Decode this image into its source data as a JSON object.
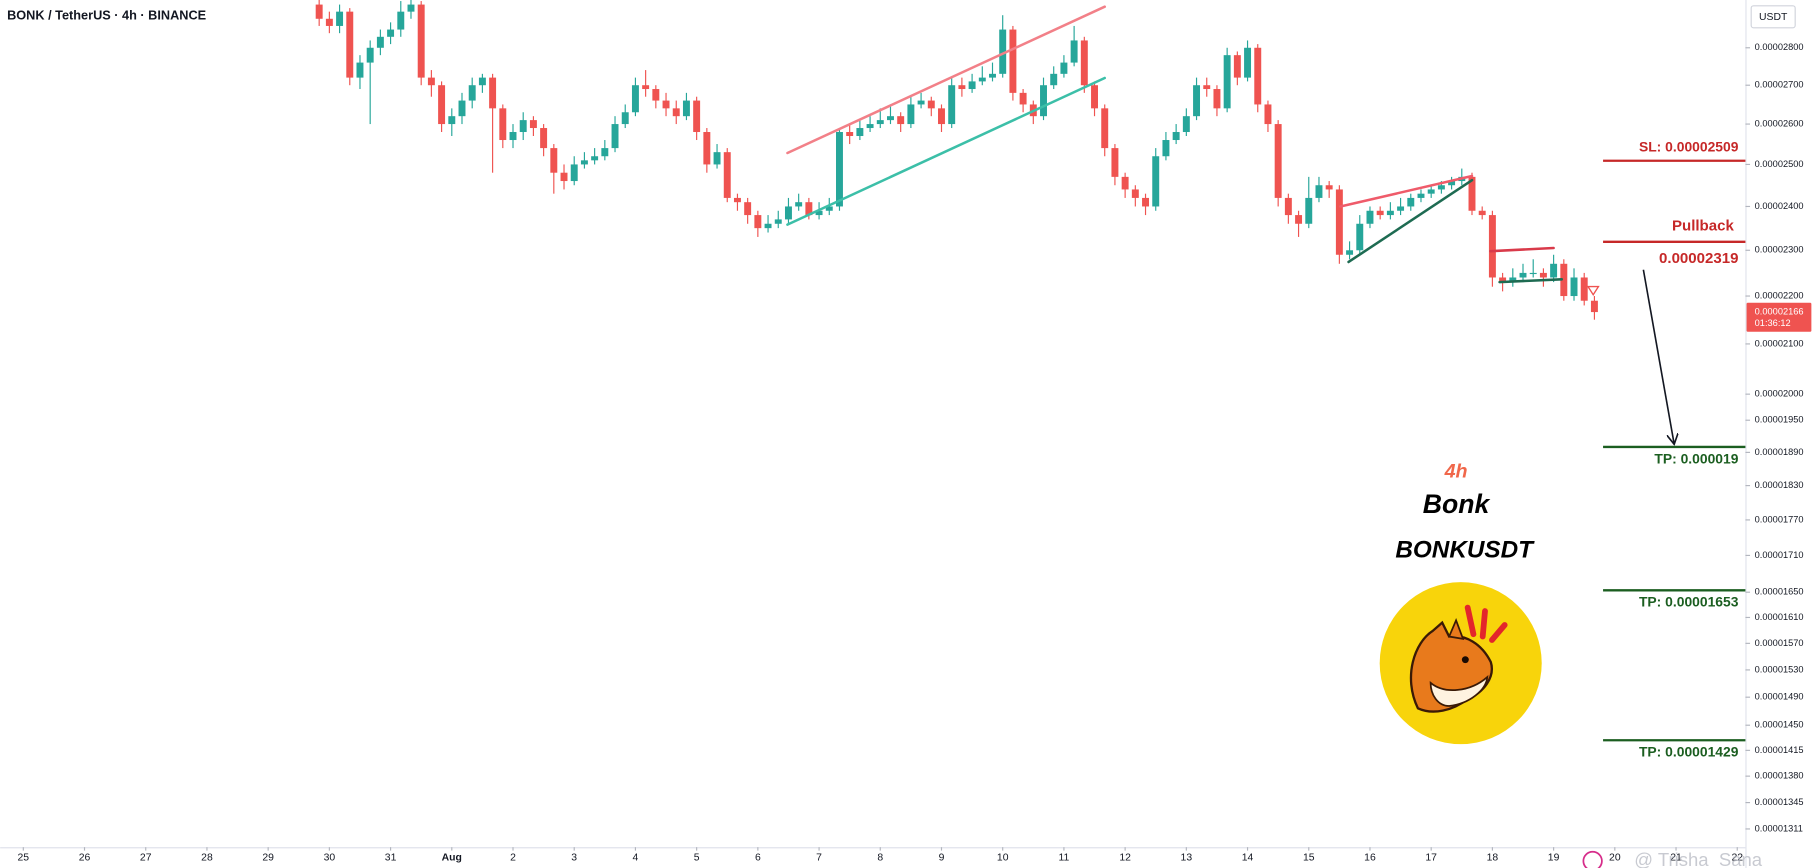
{
  "chart_data": {
    "type": "candlestick",
    "title": "BONK / TetherUS · 4h · BINANCE",
    "currency": "USDT",
    "log_scale": true,
    "grid": false,
    "up_color": "#26a69a",
    "down_color": "#ef5350",
    "x": [
      29,
      30,
      31,
      32,
      33,
      34,
      35,
      36,
      37,
      38,
      39,
      40,
      41,
      42,
      43,
      44,
      45,
      46,
      47,
      48,
      49,
      50,
      51,
      52,
      53,
      54,
      55,
      56,
      57,
      58,
      59,
      60,
      61,
      62,
      63,
      64,
      65,
      66,
      67,
      68,
      69,
      70,
      71,
      72,
      73,
      74,
      75,
      76,
      77,
      78,
      79,
      80,
      81,
      82,
      83,
      84,
      85,
      86,
      87,
      88,
      89,
      90,
      91,
      92,
      93,
      94,
      95,
      96,
      97,
      98,
      99,
      100,
      101,
      102,
      103,
      104,
      105,
      106,
      107,
      108,
      109,
      110,
      111,
      112,
      113,
      114,
      115,
      116,
      117,
      118,
      119,
      120,
      121,
      122,
      123,
      124,
      125,
      126,
      127,
      128,
      129,
      130,
      131,
      132,
      133,
      134,
      135,
      136,
      137,
      138,
      139,
      140,
      141,
      142,
      143,
      144,
      145,
      146,
      147,
      148,
      149,
      150,
      151,
      152,
      153,
      154
    ],
    "open": [
      2.92e-05,
      2.88e-05,
      2.86e-05,
      2.9e-05,
      2.72e-05,
      2.76e-05,
      2.8e-05,
      2.83e-05,
      2.85e-05,
      2.9e-05,
      2.92e-05,
      2.72e-05,
      2.7e-05,
      2.6e-05,
      2.62e-05,
      2.66e-05,
      2.7e-05,
      2.72e-05,
      2.64e-05,
      2.56e-05,
      2.58e-05,
      2.61e-05,
      2.59e-05,
      2.54e-05,
      2.48e-05,
      2.46e-05,
      2.5e-05,
      2.51e-05,
      2.52e-05,
      2.54e-05,
      2.6e-05,
      2.63e-05,
      2.7e-05,
      2.69e-05,
      2.66e-05,
      2.64e-05,
      2.62e-05,
      2.66e-05,
      2.58e-05,
      2.5e-05,
      2.53e-05,
      2.42e-05,
      2.41e-05,
      2.38e-05,
      2.35e-05,
      2.36e-05,
      2.37e-05,
      2.4e-05,
      2.41e-05,
      2.38e-05,
      2.39e-05,
      2.4e-05,
      2.58e-05,
      2.57e-05,
      2.59e-05,
      2.6e-05,
      2.61e-05,
      2.62e-05,
      2.6e-05,
      2.65e-05,
      2.66e-05,
      2.64e-05,
      2.6e-05,
      2.7e-05,
      2.69e-05,
      2.71e-05,
      2.72e-05,
      2.73e-05,
      2.85e-05,
      2.68e-05,
      2.65e-05,
      2.62e-05,
      2.7e-05,
      2.73e-05,
      2.76e-05,
      2.82e-05,
      2.7e-05,
      2.64e-05,
      2.54e-05,
      2.47e-05,
      2.44e-05,
      2.42e-05,
      2.4e-05,
      2.52e-05,
      2.56e-05,
      2.58e-05,
      2.62e-05,
      2.7e-05,
      2.69e-05,
      2.64e-05,
      2.78e-05,
      2.72e-05,
      2.8e-05,
      2.65e-05,
      2.6e-05,
      2.42e-05,
      2.38e-05,
      2.36e-05,
      2.42e-05,
      2.45e-05,
      2.44e-05,
      2.29e-05,
      2.3e-05,
      2.36e-05,
      2.39e-05,
      2.38e-05,
      2.39e-05,
      2.4e-05,
      2.42e-05,
      2.43e-05,
      2.44e-05,
      2.45e-05,
      2.46e-05,
      2.47e-05,
      2.39e-05,
      2.38e-05,
      2.24e-05,
      2.23e-05,
      2.24e-05,
      2.25e-05,
      2.25e-05,
      2.24e-05,
      2.27e-05,
      2.2e-05,
      2.24e-05,
      2.19e-05
    ],
    "high": [
      2.94e-05,
      2.9e-05,
      2.92e-05,
      2.91e-05,
      2.78e-05,
      2.82e-05,
      2.85e-05,
      2.87e-05,
      2.93e-05,
      2.94e-05,
      2.93e-05,
      2.74e-05,
      2.71e-05,
      2.64e-05,
      2.68e-05,
      2.72e-05,
      2.73e-05,
      2.73e-05,
      2.65e-05,
      2.6e-05,
      2.63e-05,
      2.62e-05,
      2.6e-05,
      2.55e-05,
      2.5e-05,
      2.52e-05,
      2.53e-05,
      2.54e-05,
      2.56e-05,
      2.62e-05,
      2.65e-05,
      2.72e-05,
      2.74e-05,
      2.7e-05,
      2.68e-05,
      2.66e-05,
      2.68e-05,
      2.67e-05,
      2.59e-05,
      2.55e-05,
      2.54e-05,
      2.43e-05,
      2.42e-05,
      2.39e-05,
      2.38e-05,
      2.39e-05,
      2.42e-05,
      2.43e-05,
      2.42e-05,
      2.41e-05,
      2.42e-05,
      2.59e-05,
      2.6e-05,
      2.61e-05,
      2.62e-05,
      2.64e-05,
      2.65e-05,
      2.63e-05,
      2.67e-05,
      2.68e-05,
      2.67e-05,
      2.65e-05,
      2.72e-05,
      2.72e-05,
      2.73e-05,
      2.75e-05,
      2.76e-05,
      2.89e-05,
      2.86e-05,
      2.69e-05,
      2.66e-05,
      2.72e-05,
      2.75e-05,
      2.78e-05,
      2.86e-05,
      2.83e-05,
      2.71e-05,
      2.65e-05,
      2.55e-05,
      2.48e-05,
      2.45e-05,
      2.43e-05,
      2.54e-05,
      2.58e-05,
      2.6e-05,
      2.64e-05,
      2.72e-05,
      2.72e-05,
      2.7e-05,
      2.8e-05,
      2.79e-05,
      2.82e-05,
      2.81e-05,
      2.66e-05,
      2.61e-05,
      2.43e-05,
      2.39e-05,
      2.47e-05,
      2.47e-05,
      2.46e-05,
      2.45e-05,
      2.32e-05,
      2.38e-05,
      2.4e-05,
      2.4e-05,
      2.41e-05,
      2.42e-05,
      2.43e-05,
      2.44e-05,
      2.45e-05,
      2.46e-05,
      2.47e-05,
      2.49e-05,
      2.48e-05,
      2.4e-05,
      2.39e-05,
      2.25e-05,
      2.26e-05,
      2.27e-05,
      2.28e-05,
      2.26e-05,
      2.29e-05,
      2.28e-05,
      2.26e-05,
      2.25e-05,
      2.2e-05
    ],
    "low": [
      2.86e-05,
      2.84e-05,
      2.84e-05,
      2.7e-05,
      2.69e-05,
      2.6e-05,
      2.78e-05,
      2.81e-05,
      2.83e-05,
      2.88e-05,
      2.7e-05,
      2.67e-05,
      2.58e-05,
      2.57e-05,
      2.6e-05,
      2.64e-05,
      2.68e-05,
      2.48e-05,
      2.54e-05,
      2.54e-05,
      2.56e-05,
      2.57e-05,
      2.52e-05,
      2.43e-05,
      2.44e-05,
      2.45e-05,
      2.49e-05,
      2.5e-05,
      2.51e-05,
      2.53e-05,
      2.59e-05,
      2.62e-05,
      2.67e-05,
      2.64e-05,
      2.62e-05,
      2.6e-05,
      2.61e-05,
      2.56e-05,
      2.48e-05,
      2.49e-05,
      2.41e-05,
      2.39e-05,
      2.36e-05,
      2.33e-05,
      2.34e-05,
      2.35e-05,
      2.36e-05,
      2.39e-05,
      2.37e-05,
      2.37e-05,
      2.38e-05,
      2.39e-05,
      2.55e-05,
      2.56e-05,
      2.58e-05,
      2.59e-05,
      2.6e-05,
      2.58e-05,
      2.59e-05,
      2.64e-05,
      2.62e-05,
      2.58e-05,
      2.59e-05,
      2.67e-05,
      2.68e-05,
      2.7e-05,
      2.71e-05,
      2.72e-05,
      2.66e-05,
      2.63e-05,
      2.6e-05,
      2.61e-05,
      2.69e-05,
      2.72e-05,
      2.75e-05,
      2.68e-05,
      2.62e-05,
      2.52e-05,
      2.45e-05,
      2.42e-05,
      2.4e-05,
      2.38e-05,
      2.39e-05,
      2.51e-05,
      2.55e-05,
      2.57e-05,
      2.61e-05,
      2.67e-05,
      2.62e-05,
      2.63e-05,
      2.7e-05,
      2.71e-05,
      2.63e-05,
      2.58e-05,
      2.4e-05,
      2.36e-05,
      2.33e-05,
      2.35e-05,
      2.41e-05,
      2.42e-05,
      2.27e-05,
      2.28e-05,
      2.29e-05,
      2.35e-05,
      2.37e-05,
      2.37e-05,
      2.38e-05,
      2.39e-05,
      2.41e-05,
      2.42e-05,
      2.43e-05,
      2.44e-05,
      2.45e-05,
      2.38e-05,
      2.37e-05,
      2.22e-05,
      2.21e-05,
      2.22e-05,
      2.23e-05,
      2.24e-05,
      2.22e-05,
      2.23e-05,
      2.19e-05,
      2.19e-05,
      2.18e-05,
      2.15e-05
    ],
    "close": [
      2.88e-05,
      2.86e-05,
      2.9e-05,
      2.72e-05,
      2.76e-05,
      2.8e-05,
      2.83e-05,
      2.85e-05,
      2.9e-05,
      2.92e-05,
      2.72e-05,
      2.7e-05,
      2.6e-05,
      2.62e-05,
      2.66e-05,
      2.7e-05,
      2.72e-05,
      2.64e-05,
      2.56e-05,
      2.58e-05,
      2.61e-05,
      2.59e-05,
      2.54e-05,
      2.48e-05,
      2.46e-05,
      2.5e-05,
      2.51e-05,
      2.52e-05,
      2.54e-05,
      2.6e-05,
      2.63e-05,
      2.7e-05,
      2.69e-05,
      2.66e-05,
      2.64e-05,
      2.62e-05,
      2.66e-05,
      2.58e-05,
      2.5e-05,
      2.53e-05,
      2.42e-05,
      2.41e-05,
      2.38e-05,
      2.35e-05,
      2.36e-05,
      2.37e-05,
      2.4e-05,
      2.41e-05,
      2.38e-05,
      2.39e-05,
      2.4e-05,
      2.58e-05,
      2.57e-05,
      2.59e-05,
      2.6e-05,
      2.61e-05,
      2.62e-05,
      2.6e-05,
      2.65e-05,
      2.66e-05,
      2.64e-05,
      2.6e-05,
      2.7e-05,
      2.69e-05,
      2.71e-05,
      2.72e-05,
      2.73e-05,
      2.85e-05,
      2.68e-05,
      2.65e-05,
      2.62e-05,
      2.7e-05,
      2.73e-05,
      2.76e-05,
      2.82e-05,
      2.7e-05,
      2.64e-05,
      2.54e-05,
      2.47e-05,
      2.44e-05,
      2.42e-05,
      2.4e-05,
      2.52e-05,
      2.56e-05,
      2.58e-05,
      2.62e-05,
      2.7e-05,
      2.69e-05,
      2.64e-05,
      2.78e-05,
      2.72e-05,
      2.8e-05,
      2.65e-05,
      2.6e-05,
      2.42e-05,
      2.38e-05,
      2.36e-05,
      2.42e-05,
      2.45e-05,
      2.44e-05,
      2.29e-05,
      2.3e-05,
      2.36e-05,
      2.39e-05,
      2.38e-05,
      2.39e-05,
      2.4e-05,
      2.42e-05,
      2.43e-05,
      2.44e-05,
      2.45e-05,
      2.46e-05,
      2.47e-05,
      2.39e-05,
      2.38e-05,
      2.24e-05,
      2.23e-05,
      2.24e-05,
      2.25e-05,
      2.25e-05,
      2.24e-05,
      2.27e-05,
      2.2e-05,
      2.24e-05,
      2.19e-05,
      2.166e-05
    ],
    "xlim": [
      -2.27,
      168.8
    ],
    "xticks": [
      {
        "value": 0,
        "label": "25"
      },
      {
        "value": 6,
        "label": "26"
      },
      {
        "value": 12,
        "label": "27"
      },
      {
        "value": 18,
        "label": "28"
      },
      {
        "value": 24,
        "label": "29"
      },
      {
        "value": 30,
        "label": "30"
      },
      {
        "value": 36,
        "label": "31"
      },
      {
        "value": 42,
        "label": "Aug"
      },
      {
        "value": 48,
        "label": "2"
      },
      {
        "value": 54,
        "label": "3"
      },
      {
        "value": 60,
        "label": "4"
      },
      {
        "value": 66,
        "label": "5"
      },
      {
        "value": 72,
        "label": "6"
      },
      {
        "value": 78,
        "label": "7"
      },
      {
        "value": 84,
        "label": "8"
      },
      {
        "value": 90,
        "label": "9"
      },
      {
        "value": 96,
        "label": "10"
      },
      {
        "value": 102,
        "label": "11"
      },
      {
        "value": 108,
        "label": "12"
      },
      {
        "value": 114,
        "label": "13"
      },
      {
        "value": 120,
        "label": "14"
      },
      {
        "value": 126,
        "label": "15"
      },
      {
        "value": 132,
        "label": "16"
      },
      {
        "value": 138,
        "label": "17"
      },
      {
        "value": 144,
        "label": "18"
      },
      {
        "value": 150,
        "label": "19"
      },
      {
        "value": 156,
        "label": "20"
      },
      {
        "value": 162,
        "label": "21"
      },
      {
        "value": 168,
        "label": "22"
      }
    ],
    "ylim": [
      1.288e-05,
      2.933e-05
    ],
    "yticks": [
      {
        "value": 2.8e-05,
        "label": "0.00002800"
      },
      {
        "value": 2.7e-05,
        "label": "0.00002700"
      },
      {
        "value": 2.6e-05,
        "label": "0.00002600"
      },
      {
        "value": 2.5e-05,
        "label": "0.00002500"
      },
      {
        "value": 2.4e-05,
        "label": "0.00002400"
      },
      {
        "value": 2.3e-05,
        "label": "0.00002300"
      },
      {
        "value": 2.2e-05,
        "label": "0.00002200"
      },
      {
        "value": 2.1e-05,
        "label": "0.00002100"
      },
      {
        "value": 2e-05,
        "label": "0.00002000"
      },
      {
        "value": 1.95e-05,
        "label": "0.00001950"
      },
      {
        "value": 1.89e-05,
        "label": "0.00001890"
      },
      {
        "value": 1.83e-05,
        "label": "0.00001830"
      },
      {
        "value": 1.77e-05,
        "label": "0.00001770"
      },
      {
        "value": 1.71e-05,
        "label": "0.00001710"
      },
      {
        "value": 1.65e-05,
        "label": "0.00001650"
      },
      {
        "value": 1.61e-05,
        "label": "0.00001610"
      },
      {
        "value": 1.57e-05,
        "label": "0.00001570"
      },
      {
        "value": 1.53e-05,
        "label": "0.00001530"
      },
      {
        "value": 1.49e-05,
        "label": "0.00001490"
      },
      {
        "value": 1.45e-05,
        "label": "0.00001450"
      },
      {
        "value": 1.415e-05,
        "label": "0.00001415"
      },
      {
        "value": 1.38e-05,
        "label": "0.00001380"
      },
      {
        "value": 1.345e-05,
        "label": "0.00001345"
      },
      {
        "value": 1.311e-05,
        "label": "0.00001311"
      }
    ],
    "last_price": {
      "value": 2.166e-05,
      "label": "0.00002166"
    },
    "countdown": "01:36:12",
    "levels": [
      {
        "value": 2.509e-05,
        "label": "SL: 0.00002509",
        "color": "#c62828"
      },
      {
        "name": "Pullback",
        "value": 2.319e-05,
        "label": "0.00002319",
        "color": "#c62828"
      },
      {
        "value": 1.9e-05,
        "label": "TP: 0.000019",
        "color": "#1b5e20"
      },
      {
        "value": 1.653e-05,
        "label": "TP: 0.00001653",
        "color": "#1b5e20"
      },
      {
        "value": 1.429e-05,
        "label": "TP: 0.00001429",
        "color": "#1b5e20"
      }
    ],
    "trendlines": [
      {
        "color": "#f28088",
        "points": [
          [
            74.9,
            2.528e-05
          ],
          [
            106.0,
            2.914e-05
          ]
        ]
      },
      {
        "color": "#3cbfa8",
        "points": [
          [
            74.9,
            2.358e-05
          ],
          [
            106.0,
            2.719e-05
          ]
        ]
      },
      {
        "color": "#ef5b6a",
        "points": [
          [
            129.1,
            2.4e-05
          ],
          [
            142.0,
            2.472e-05
          ]
        ]
      },
      {
        "color": "#1e6b52",
        "points": [
          [
            129.9,
            2.274e-05
          ],
          [
            142.0,
            2.462e-05
          ]
        ]
      },
      {
        "color": "#d93a4a",
        "points": [
          [
            143.8,
            2.298e-05
          ],
          [
            150.0,
            2.305e-05
          ]
        ]
      },
      {
        "color": "#1e6b52",
        "points": [
          [
            144.7,
            2.23e-05
          ],
          [
            150.8,
            2.236e-05
          ]
        ]
      }
    ],
    "arrow": {
      "color": "#131722",
      "points": [
        [
          158.8,
          2.257e-05
        ],
        [
          161.8,
          1.907e-05
        ]
      ]
    },
    "annotations": {
      "timeframe": "4h",
      "name": "Bonk",
      "symbol": "BONKUSDT"
    },
    "watermark": "@ Trisha_Sana"
  }
}
